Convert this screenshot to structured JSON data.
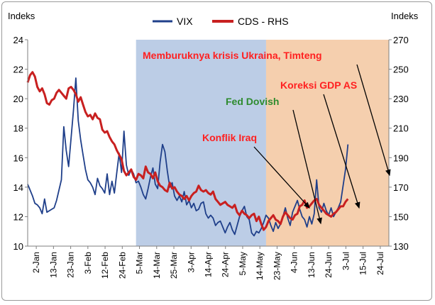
{
  "chart_data": {
    "type": "line",
    "title": "",
    "left_axis_label": "Indeks",
    "right_axis_label": "Indeks",
    "ylim_left": [
      10,
      24
    ],
    "ylim_right": [
      130,
      270
    ],
    "y_ticks_left": [
      "10",
      "12",
      "14",
      "16",
      "18",
      "20",
      "22",
      "24"
    ],
    "y_ticks_right": [
      "130",
      "150",
      "170",
      "190",
      "210",
      "230",
      "250",
      "270"
    ],
    "x_ticks": [
      "2-Jan",
      "13-Jan",
      "23-Jan",
      "3-Feb",
      "12-Feb",
      "24-Feb",
      "5-Mar",
      "14-Mar",
      "25-Mar",
      "3-Apr",
      "14-Apr",
      "24-Apr",
      "5-May",
      "14-May",
      "23-May",
      "4-Jun",
      "13-Jun",
      "24-Jun",
      "3-Jul",
      "15-Jul",
      "24-Jul"
    ],
    "x_range": [
      0,
      150
    ],
    "legend_position": "top",
    "shaded_regions": [
      {
        "start": 45,
        "end": 99,
        "color": "#bccde6"
      },
      {
        "start": 99,
        "end": 150,
        "color": "#f5cfae"
      }
    ],
    "series": [
      {
        "name": "VIX",
        "axis": "left",
        "color": "#1f3f8a",
        "values": [
          [
            0,
            14.2
          ],
          [
            1,
            13.8
          ],
          [
            2,
            13.4
          ],
          [
            3,
            12.9
          ],
          [
            4,
            12.8
          ],
          [
            5,
            12.6
          ],
          [
            6,
            12.2
          ],
          [
            7,
            13.2
          ],
          [
            8,
            12.3
          ],
          [
            9,
            12.4
          ],
          [
            10,
            12.5
          ],
          [
            11,
            12.6
          ],
          [
            12,
            13.1
          ],
          [
            13,
            13.8
          ],
          [
            14,
            14.5
          ],
          [
            15,
            18.1
          ],
          [
            16,
            16.5
          ],
          [
            17,
            15.4
          ],
          [
            18,
            17.3
          ],
          [
            19,
            19.2
          ],
          [
            20,
            21.4
          ],
          [
            21,
            18.5
          ],
          [
            22,
            17.2
          ],
          [
            23,
            16.2
          ],
          [
            24,
            15.2
          ],
          [
            25,
            14.5
          ],
          [
            26,
            14.3
          ],
          [
            27,
            14.0
          ],
          [
            28,
            13.5
          ],
          [
            29,
            14.6
          ],
          [
            30,
            14.1
          ],
          [
            31,
            13.9
          ],
          [
            32,
            13.6
          ],
          [
            33,
            14.9
          ],
          [
            34,
            13.5
          ],
          [
            35,
            14.4
          ],
          [
            36,
            13.6
          ],
          [
            37,
            15.0
          ],
          [
            38,
            16.3
          ],
          [
            39,
            15.0
          ],
          [
            40,
            17.8
          ],
          [
            41,
            15.5
          ],
          [
            42,
            14.8
          ],
          [
            43,
            15.2
          ],
          [
            44,
            14.9
          ],
          [
            45,
            14.3
          ],
          [
            46,
            14.4
          ],
          [
            47,
            14.0
          ],
          [
            48,
            13.5
          ],
          [
            49,
            13.2
          ],
          [
            50,
            13.9
          ],
          [
            51,
            14.7
          ],
          [
            52,
            15.3
          ],
          [
            53,
            14.2
          ],
          [
            54,
            13.9
          ],
          [
            55,
            15.7
          ],
          [
            56,
            16.9
          ],
          [
            57,
            16.4
          ],
          [
            58,
            15.1
          ],
          [
            59,
            14.0
          ],
          [
            60,
            14.3
          ],
          [
            61,
            13.4
          ],
          [
            62,
            13.1
          ],
          [
            63,
            13.4
          ],
          [
            64,
            13.0
          ],
          [
            65,
            13.7
          ],
          [
            66,
            12.8
          ],
          [
            67,
            13.1
          ],
          [
            68,
            12.6
          ],
          [
            69,
            12.9
          ],
          [
            70,
            12.4
          ],
          [
            71,
            12.5
          ],
          [
            72,
            12.9
          ],
          [
            73,
            13.0
          ],
          [
            74,
            12.2
          ],
          [
            75,
            11.9
          ],
          [
            76,
            12.1
          ],
          [
            77,
            11.9
          ],
          [
            78,
            11.4
          ],
          [
            79,
            11.6
          ],
          [
            80,
            11.7
          ],
          [
            81,
            11.3
          ],
          [
            82,
            10.9
          ],
          [
            83,
            11.3
          ],
          [
            84,
            11.6
          ],
          [
            85,
            11.1
          ],
          [
            86,
            10.8
          ],
          [
            87,
            11.4
          ],
          [
            88,
            12.0
          ],
          [
            89,
            12.4
          ],
          [
            90,
            12.7
          ],
          [
            91,
            12.0
          ],
          [
            92,
            11.8
          ],
          [
            93,
            10.9
          ],
          [
            94,
            10.7
          ],
          [
            95,
            11.0
          ],
          [
            96,
            10.9
          ],
          [
            97,
            11.2
          ],
          [
            98,
            11.6
          ],
          [
            99,
            12.1
          ],
          [
            100,
            11.9
          ],
          [
            101,
            11.4
          ],
          [
            102,
            11.0
          ],
          [
            103,
            11.6
          ],
          [
            104,
            11.2
          ],
          [
            105,
            11.5
          ],
          [
            106,
            12.0
          ],
          [
            107,
            12.6
          ],
          [
            108,
            11.9
          ],
          [
            109,
            11.4
          ],
          [
            110,
            12.3
          ],
          [
            111,
            12.7
          ],
          [
            112,
            13.1
          ],
          [
            113,
            12.5
          ],
          [
            114,
            12.0
          ],
          [
            115,
            11.8
          ],
          [
            116,
            11.3
          ],
          [
            117,
            12.0
          ],
          [
            118,
            11.5
          ],
          [
            119,
            12.2
          ],
          [
            120,
            14.5
          ],
          [
            121,
            12.6
          ],
          [
            122,
            12.3
          ],
          [
            123,
            12.9
          ],
          [
            124,
            12.4
          ],
          [
            125,
            12.1
          ],
          [
            126,
            12.6
          ],
          [
            127,
            12.0
          ],
          [
            128,
            12.3
          ],
          [
            129,
            12.6
          ],
          [
            130,
            13.0
          ],
          [
            131,
            14.1
          ],
          [
            132,
            15.2
          ],
          [
            133,
            16.9
          ]
        ]
      },
      {
        "name": "CDS - RHS",
        "axis": "right",
        "color": "#c82020",
        "values": [
          [
            0,
            241
          ],
          [
            1,
            246
          ],
          [
            2,
            248
          ],
          [
            3,
            245
          ],
          [
            4,
            238
          ],
          [
            5,
            235
          ],
          [
            6,
            237
          ],
          [
            7,
            233
          ],
          [
            8,
            227
          ],
          [
            9,
            226
          ],
          [
            10,
            229
          ],
          [
            11,
            230
          ],
          [
            12,
            234
          ],
          [
            13,
            236
          ],
          [
            14,
            234
          ],
          [
            15,
            232
          ],
          [
            16,
            230
          ],
          [
            17,
            237
          ],
          [
            18,
            238
          ],
          [
            19,
            236
          ],
          [
            20,
            233
          ],
          [
            21,
            228
          ],
          [
            22,
            231
          ],
          [
            23,
            226
          ],
          [
            24,
            221
          ],
          [
            25,
            218
          ],
          [
            26,
            219
          ],
          [
            27,
            216
          ],
          [
            28,
            220
          ],
          [
            29,
            217
          ],
          [
            30,
            216
          ],
          [
            31,
            209
          ],
          [
            32,
            207
          ],
          [
            33,
            208
          ],
          [
            34,
            204
          ],
          [
            35,
            201
          ],
          [
            36,
            199
          ],
          [
            37,
            195
          ],
          [
            38,
            192
          ],
          [
            39,
            189
          ],
          [
            40,
            181
          ],
          [
            41,
            178
          ],
          [
            42,
            180
          ],
          [
            43,
            182
          ],
          [
            44,
            177
          ],
          [
            45,
            175
          ],
          [
            46,
            179
          ],
          [
            47,
            178
          ],
          [
            48,
            176
          ],
          [
            49,
            184
          ],
          [
            50,
            180
          ],
          [
            51,
            179
          ],
          [
            52,
            176
          ],
          [
            53,
            180
          ],
          [
            54,
            174
          ],
          [
            55,
            171
          ],
          [
            56,
            170
          ],
          [
            57,
            168
          ],
          [
            58,
            167
          ],
          [
            59,
            173
          ],
          [
            60,
            169
          ],
          [
            61,
            170
          ],
          [
            62,
            167
          ],
          [
            63,
            165
          ],
          [
            64,
            164
          ],
          [
            65,
            162
          ],
          [
            66,
            164
          ],
          [
            67,
            161
          ],
          [
            68,
            164
          ],
          [
            69,
            166
          ],
          [
            70,
            167
          ],
          [
            71,
            171
          ],
          [
            72,
            168
          ],
          [
            73,
            167
          ],
          [
            74,
            168
          ],
          [
            75,
            166
          ],
          [
            76,
            165
          ],
          [
            77,
            167
          ],
          [
            78,
            162
          ],
          [
            79,
            160
          ],
          [
            80,
            158
          ],
          [
            81,
            159
          ],
          [
            82,
            160
          ],
          [
            83,
            158
          ],
          [
            84,
            157
          ],
          [
            85,
            156
          ],
          [
            86,
            158
          ],
          [
            87,
            153
          ],
          [
            88,
            151
          ],
          [
            89,
            154
          ],
          [
            90,
            152
          ],
          [
            91,
            151
          ],
          [
            92,
            149
          ],
          [
            93,
            151
          ],
          [
            94,
            152
          ],
          [
            95,
            147
          ],
          [
            96,
            150
          ],
          [
            97,
            145
          ],
          [
            98,
            141
          ],
          [
            99,
            143
          ],
          [
            100,
            147
          ],
          [
            101,
            149
          ],
          [
            102,
            151
          ],
          [
            103,
            148
          ],
          [
            104,
            147
          ],
          [
            105,
            145
          ],
          [
            106,
            150
          ],
          [
            107,
            153
          ],
          [
            108,
            151
          ],
          [
            109,
            149
          ],
          [
            110,
            148
          ],
          [
            111,
            151
          ],
          [
            112,
            152
          ],
          [
            113,
            157
          ],
          [
            114,
            158
          ],
          [
            115,
            161
          ],
          [
            116,
            156
          ],
          [
            117,
            157
          ],
          [
            118,
            159
          ],
          [
            119,
            161
          ],
          [
            120,
            162
          ],
          [
            121,
            158
          ],
          [
            122,
            156
          ],
          [
            123,
            154
          ],
          [
            124,
            152
          ],
          [
            125,
            151
          ],
          [
            126,
            150
          ],
          [
            127,
            152
          ],
          [
            128,
            153
          ],
          [
            129,
            155
          ],
          [
            130,
            157
          ],
          [
            131,
            157
          ],
          [
            132,
            160
          ],
          [
            133,
            162
          ]
        ]
      }
    ],
    "annotations": [
      {
        "text": "Memburuknya krisis Ukraina, Timteng",
        "color": "#ff2020"
      },
      {
        "text": "Koreksi GDP AS",
        "color": "#ff2020"
      },
      {
        "text": "Fed Dovish",
        "color": "#2e8b2e"
      },
      {
        "text": "Konflik Iraq",
        "color": "#ff2020"
      }
    ]
  }
}
